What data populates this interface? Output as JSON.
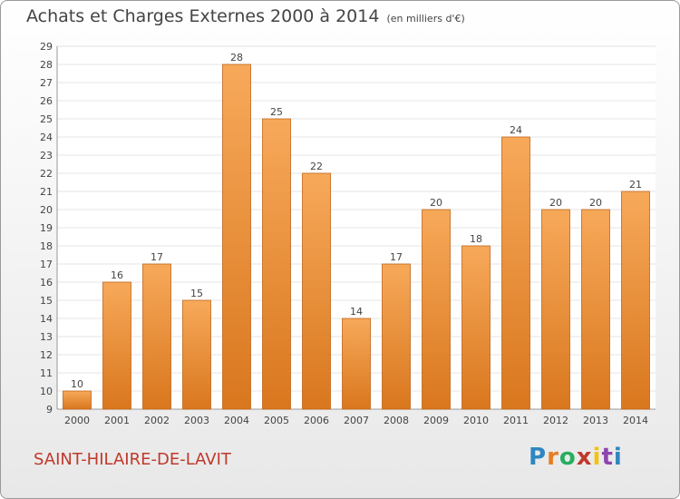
{
  "title": "Achats et Charges Externes 2000 à 2014",
  "subtitle": "(en milliers d'€)",
  "commune": "SAINT-HILAIRE-DE-LAVIT",
  "logo": {
    "letters": [
      "P",
      "r",
      "o",
      "x",
      "i",
      "t",
      "i"
    ],
    "colors": [
      "#2e86c1",
      "#e67e22",
      "#27ae60",
      "#c0392b",
      "#f1c40f",
      "#8e44ad",
      "#2e86c1"
    ]
  },
  "colors": {
    "bar_top": "#f7a95a",
    "bar_bottom": "#d9771e",
    "bar_edge": "#c0651a",
    "grid": "#e4e4e4",
    "axis_text": "#444444"
  },
  "chart_data": {
    "type": "bar",
    "title": "Achats et Charges Externes 2000 à 2014",
    "subtitle": "(en milliers d'€)",
    "categories": [
      "2000",
      "2001",
      "2002",
      "2003",
      "2004",
      "2005",
      "2006",
      "2007",
      "2008",
      "2009",
      "2010",
      "2011",
      "2012",
      "2013",
      "2014"
    ],
    "values": [
      10,
      16,
      17,
      15,
      28,
      25,
      22,
      14,
      17,
      20,
      18,
      24,
      20,
      20,
      21
    ],
    "ylim": [
      9,
      29
    ],
    "yticks": [
      9,
      10,
      11,
      12,
      13,
      14,
      15,
      16,
      17,
      18,
      19,
      20,
      21,
      22,
      23,
      24,
      25,
      26,
      27,
      28,
      29
    ],
    "grid": true,
    "legend": "none"
  }
}
